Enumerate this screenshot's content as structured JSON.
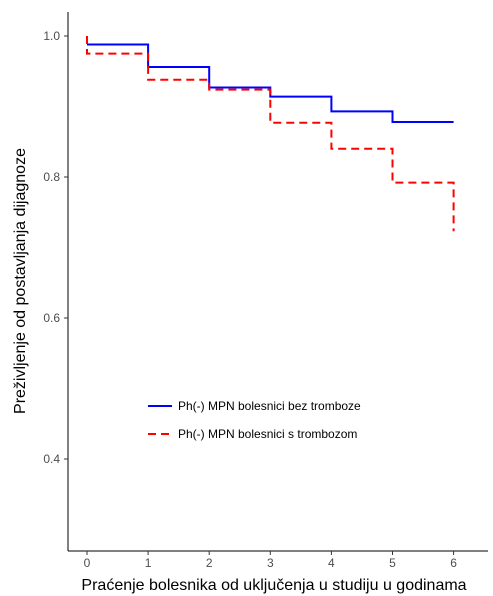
{
  "chart_data": {
    "type": "line",
    "subtype": "step (Kaplan-Meier survival curve)",
    "title": "",
    "xlabel": "Praćenje bolesnika od uključenja u studiju u godinama",
    "ylabel": "Preživljenje od postavljanja dijagnoze",
    "xlim": [
      -0.3,
      6.5
    ],
    "ylim": [
      0.3,
      1.04
    ],
    "x_ticks": [
      0,
      1,
      2,
      3,
      4,
      5,
      6
    ],
    "x_tick_labels": [
      "0",
      "1",
      "2",
      "3",
      "4",
      "5",
      "6"
    ],
    "y_ticks": [
      0.4,
      0.6,
      0.8,
      1.0
    ],
    "y_tick_labels": [
      "0.4",
      "0.6",
      "0.8",
      "1.0"
    ],
    "grid": false,
    "legend_position": "bottom-center inside plot",
    "series": [
      {
        "name": "Ph(-) MPN bolesnici bez tromboze",
        "color": "#0000ff",
        "line_style": "solid",
        "steps": [
          {
            "x": 0,
            "y": 0.988
          },
          {
            "x": 1,
            "y": 0.956
          },
          {
            "x": 2,
            "y": 0.927
          },
          {
            "x": 3,
            "y": 0.914
          },
          {
            "x": 4,
            "y": 0.893
          },
          {
            "x": 5,
            "y": 0.878
          },
          {
            "x": 6,
            "y": 0.878
          }
        ]
      },
      {
        "name": "Ph(-) MPN bolesnici s trombozom",
        "color": "#ff0000",
        "line_style": "dashed",
        "start": {
          "x": 0,
          "y": 1.0
        },
        "steps": [
          {
            "x": 0,
            "y": 0.975
          },
          {
            "x": 1,
            "y": 0.938
          },
          {
            "x": 2,
            "y": 0.924
          },
          {
            "x": 3,
            "y": 0.877
          },
          {
            "x": 4,
            "y": 0.84
          },
          {
            "x": 5,
            "y": 0.792
          },
          {
            "x": 6,
            "y": 0.723
          }
        ]
      }
    ]
  }
}
